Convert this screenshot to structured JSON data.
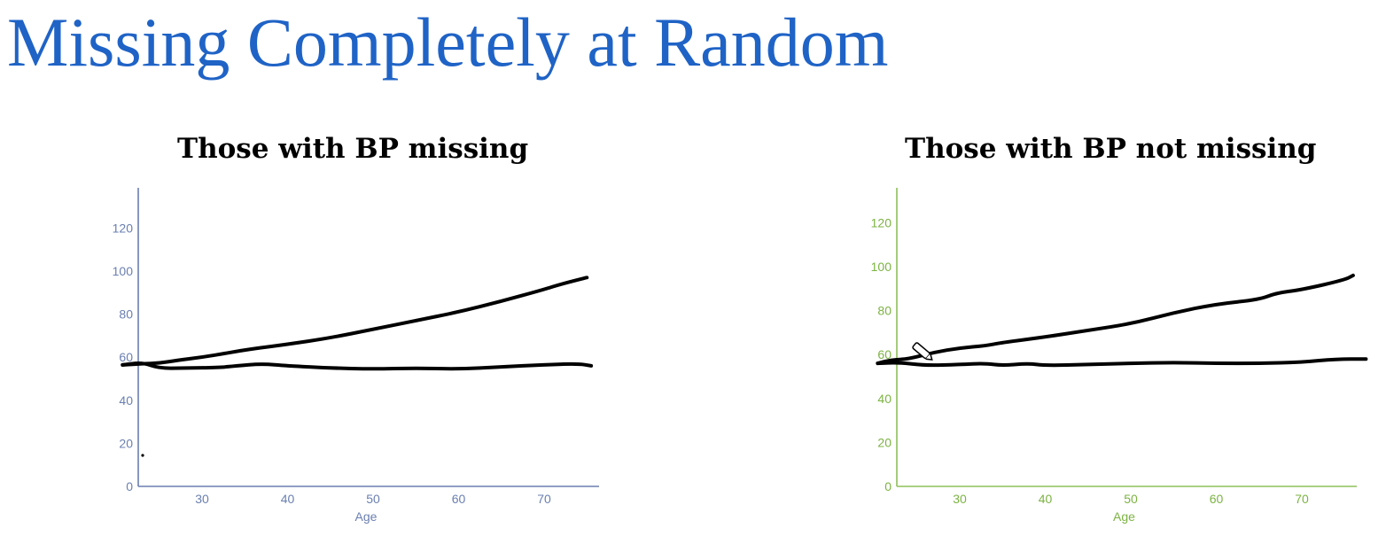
{
  "slide": {
    "title": "Missing Completely at Random"
  },
  "chart_data": [
    {
      "type": "line",
      "title": "Those with BP missing",
      "xlabel": "Age",
      "ylabel": "",
      "xlim": [
        22,
        77
      ],
      "ylim": [
        0,
        135
      ],
      "x_ticks": [
        30,
        40,
        50,
        60,
        70
      ],
      "y_ticks": [
        0,
        20,
        40,
        60,
        80,
        100,
        120
      ],
      "axis_color": "#6a7fb0",
      "tick_color": "#6a7fb0",
      "grid": false,
      "series": [
        {
          "x": [
            20.7,
            23,
            25,
            27,
            30,
            33,
            36,
            40,
            45,
            50,
            55,
            60,
            65,
            70,
            72,
            75
          ],
          "y": [
            56.4,
            57,
            57.2,
            58.5,
            60,
            62,
            64,
            66,
            69,
            73,
            77,
            81,
            86,
            91.5,
            94,
            97
          ]
        },
        {
          "x": [
            20.7,
            23,
            25,
            28,
            32,
            34,
            37,
            40,
            45,
            50,
            55,
            60,
            65,
            70,
            74,
            75.5
          ],
          "y": [
            56.4,
            57.6,
            54.8,
            55,
            55.2,
            56,
            57,
            56,
            55,
            54.5,
            55,
            54.5,
            55.5,
            56.5,
            57,
            56
          ]
        }
      ]
    },
    {
      "type": "line",
      "title": "Those with BP not missing",
      "xlabel": "Age",
      "ylabel": "",
      "xlim": [
        22,
        77
      ],
      "ylim": [
        0,
        135
      ],
      "x_ticks": [
        30,
        40,
        50,
        60,
        70
      ],
      "y_ticks": [
        0,
        20,
        40,
        60,
        80,
        100,
        120
      ],
      "axis_color": "#8ec05a",
      "tick_color": "#7cb342",
      "grid": false,
      "series": [
        {
          "x": [
            20.4,
            22,
            24,
            27,
            30,
            33,
            35,
            40,
            45,
            50,
            55,
            60,
            65,
            67,
            70,
            75,
            76
          ],
          "y": [
            56,
            57.6,
            58,
            61,
            63,
            64,
            65.5,
            68,
            71,
            74,
            79,
            83,
            85,
            88,
            89.5,
            94,
            96
          ]
        },
        {
          "x": [
            20.4,
            23,
            26,
            30,
            33,
            35,
            38,
            40,
            45,
            50,
            55,
            60,
            65,
            70,
            74,
            77.5
          ],
          "y": [
            56,
            56.4,
            55,
            55.5,
            56,
            55,
            56,
            55,
            55.5,
            56,
            56.4,
            56,
            56,
            56.5,
            58,
            58
          ]
        }
      ]
    }
  ]
}
